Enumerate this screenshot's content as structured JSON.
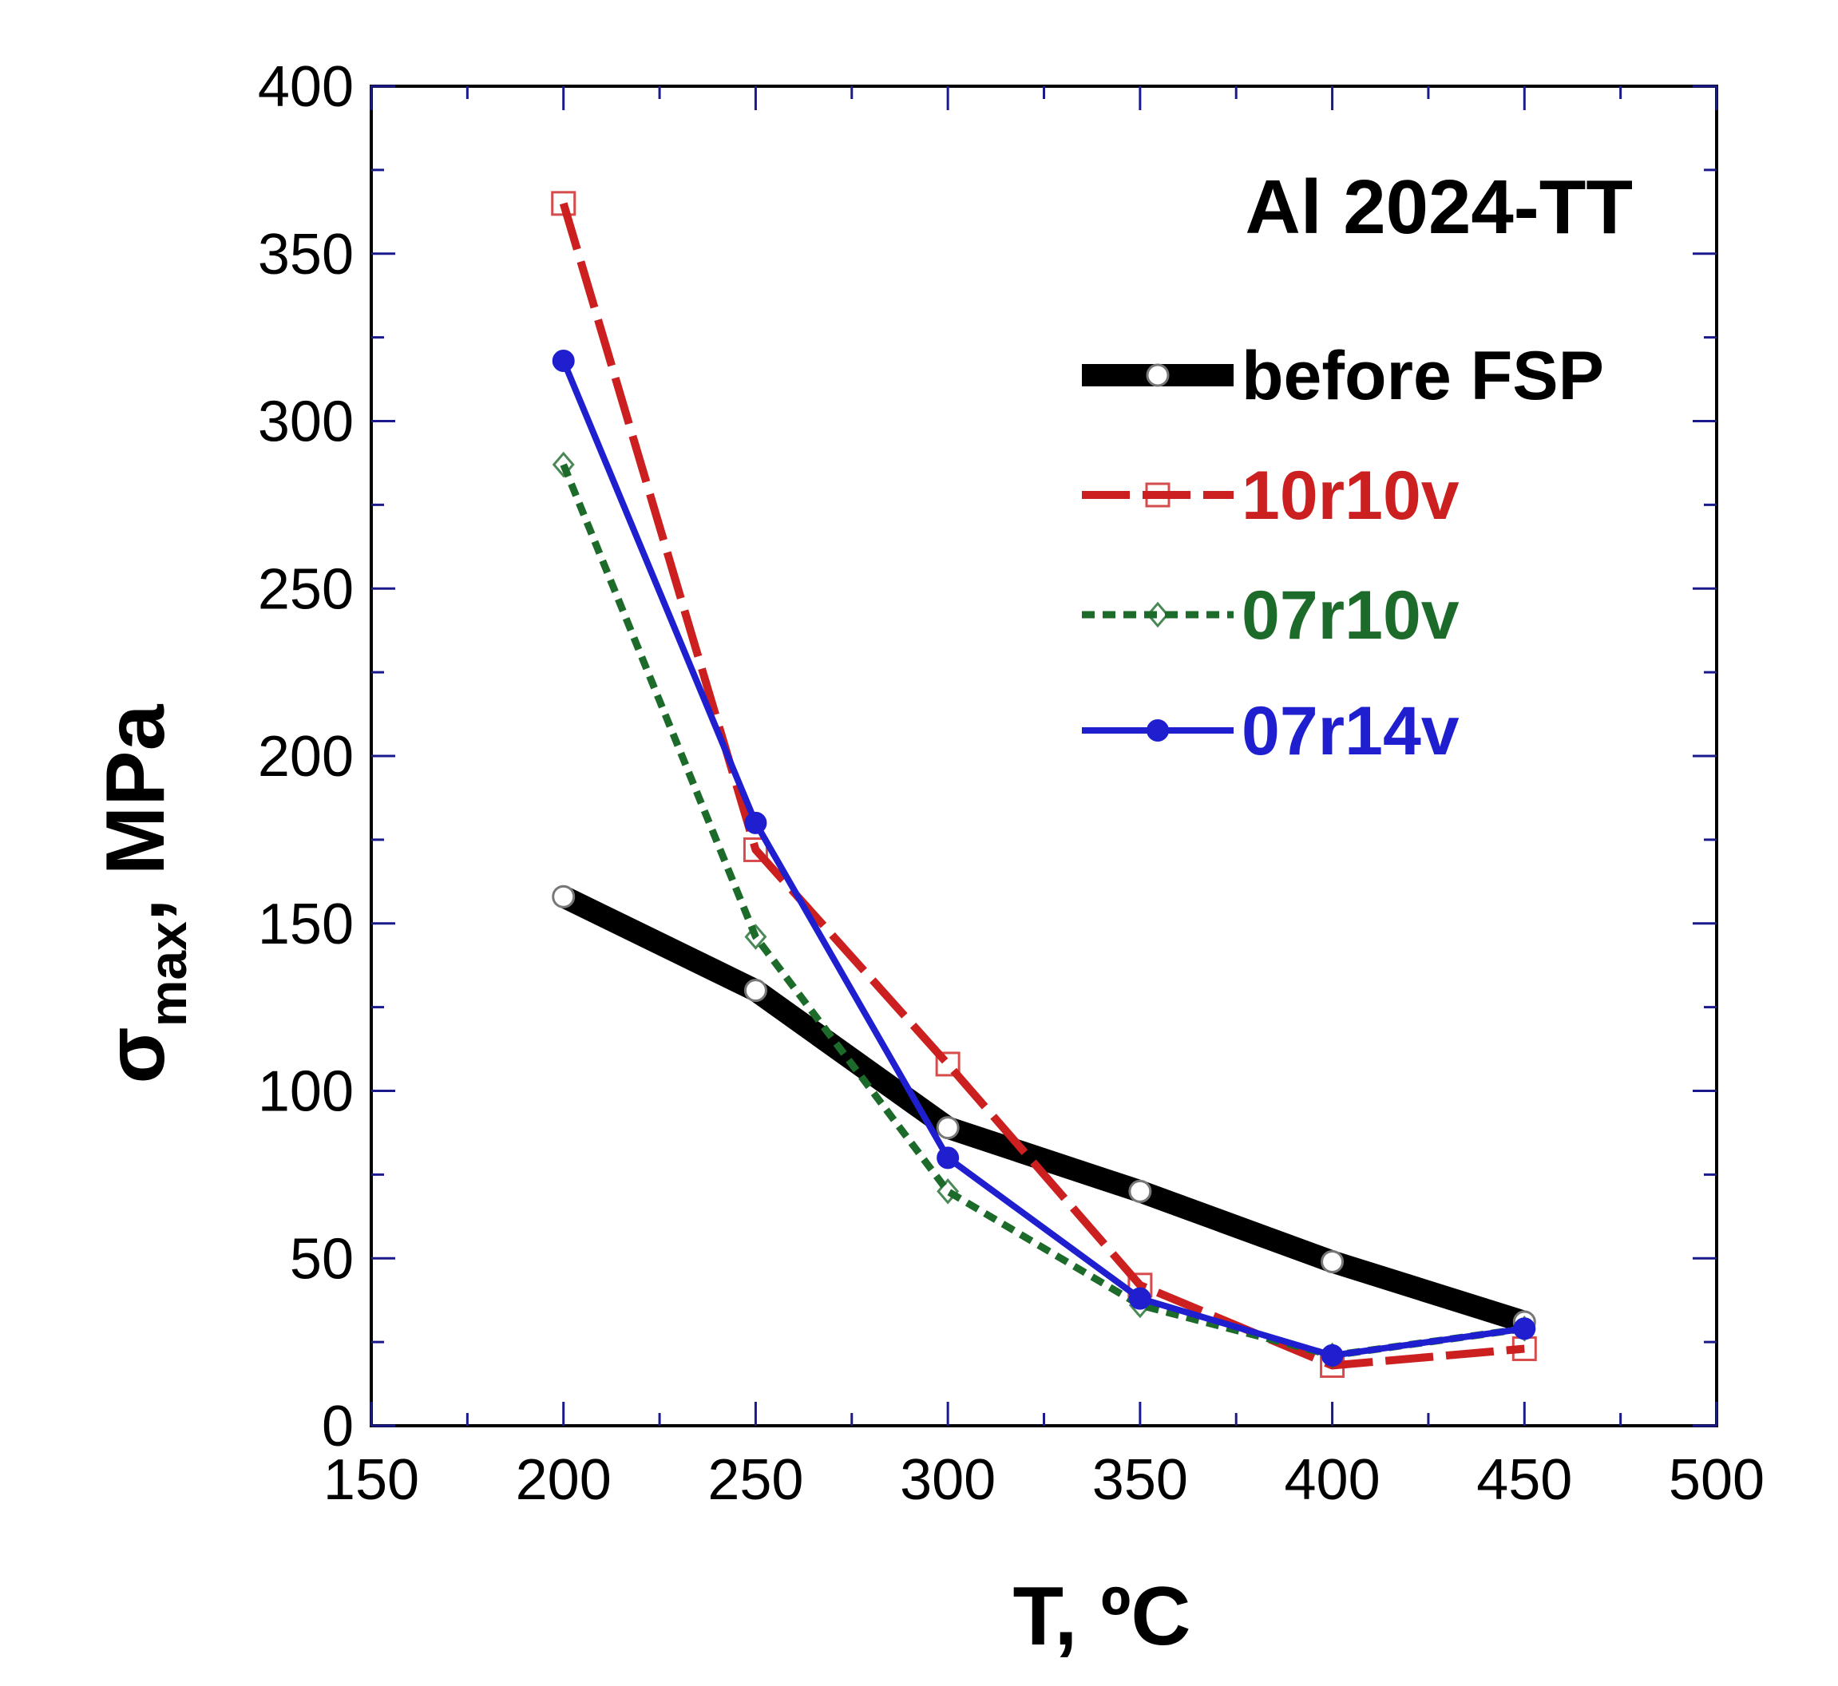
{
  "chart_data": {
    "type": "line",
    "title": "",
    "annotation": "Al 2024-TT",
    "xlabel": "T, ºC",
    "ylabel_main": "σ",
    "ylabel_sub": "max",
    "ylabel_unit": ", MPa",
    "xlim": [
      150,
      500
    ],
    "ylim": [
      0,
      400
    ],
    "xticks": [
      "150",
      "200",
      "250",
      "300",
      "350",
      "400",
      "450",
      "500"
    ],
    "yticks": [
      "0",
      "50",
      "100",
      "150",
      "200",
      "250",
      "300",
      "350",
      "400"
    ],
    "legend_position": "top-right",
    "grid": false,
    "series": [
      {
        "name": "before FSP",
        "color": "#000000",
        "style": "solid-thick",
        "marker": "circle-open",
        "x": [
          200,
          250,
          300,
          350,
          400,
          450
        ],
        "y": [
          158,
          130,
          89,
          70,
          49,
          31
        ]
      },
      {
        "name": "10r10v",
        "color": "#cc1f1f",
        "style": "dashed",
        "marker": "square-open",
        "x": [
          200,
          250,
          300,
          350,
          400,
          450
        ],
        "y": [
          365,
          172,
          108,
          42,
          18,
          23
        ]
      },
      {
        "name": "07r10v",
        "color": "#1d6b2a",
        "style": "dotted",
        "marker": "diamond-open",
        "x": [
          200,
          250,
          300,
          350,
          400,
          450
        ],
        "y": [
          287,
          146,
          70,
          36,
          21,
          29
        ]
      },
      {
        "name": "07r14v",
        "color": "#1f1fd0",
        "style": "solid",
        "marker": "circle-filled",
        "x": [
          200,
          250,
          300,
          350,
          400,
          450
        ],
        "y": [
          318,
          180,
          80,
          38,
          21,
          29
        ]
      }
    ]
  }
}
